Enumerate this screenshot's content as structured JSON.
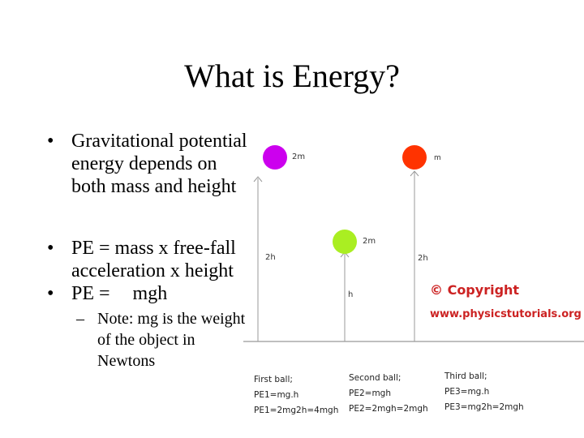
{
  "slide": {
    "title": "What is Energy?",
    "bullet_symbol": "•",
    "sub_symbol": "–",
    "bullets": [
      {
        "lines": [
          "Gravitational potential",
          "energy depends on",
          "both mass and height"
        ]
      },
      {
        "lines": [
          "PE = mass x free-fall",
          "acceleration x height"
        ]
      },
      {
        "prefix": "PE =",
        "value": "mgh"
      }
    ],
    "sub_bullet": {
      "lines": [
        "Note: mg is the weight",
        "of the object in",
        "Newtons"
      ]
    }
  },
  "figure": {
    "colors": {
      "ball1": "#cc00ee",
      "ball2": "#aaee22",
      "ball3": "#ff3300",
      "lines": "#999999",
      "copyright": "#cc2222"
    },
    "labels": {
      "ball1_mass": "2m",
      "ball1_height": "2h",
      "ball2_mass": "2m",
      "ball2_height": "h",
      "ball3_mass": "m",
      "ball3_height": "2h"
    },
    "copyright_line1": "© Copyright",
    "copyright_line2": "www.physicstutorials.org",
    "captions": [
      {
        "lines": [
          "First ball;",
          "PE1=mg.h",
          "PE1=2mg2h=4mgh"
        ]
      },
      {
        "lines": [
          "Second ball;",
          "PE2=mgh",
          "PE2=2mgh=2mgh"
        ]
      },
      {
        "lines": [
          "Third ball;",
          "PE3=mg.h",
          "PE3=mg2h=2mgh"
        ]
      }
    ]
  }
}
